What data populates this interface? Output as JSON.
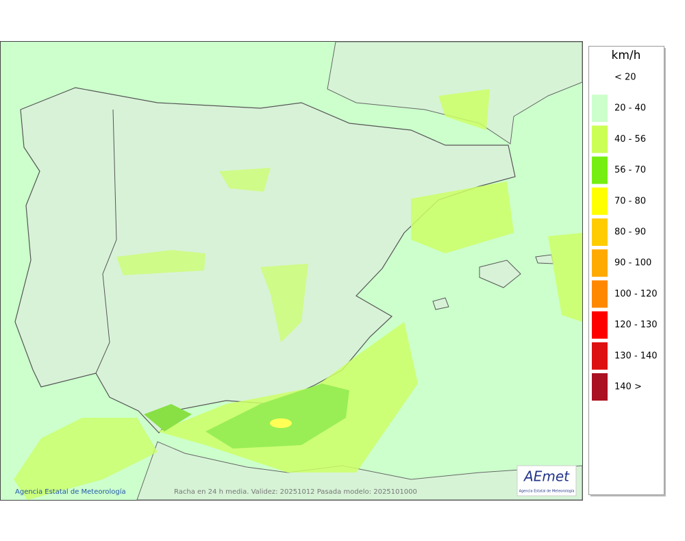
{
  "map": {
    "credit": "Agencia Estatal de Meteorología",
    "caption": "Racha en 24 h media. Validez: 20251012 Pasada modelo: 2025101000"
  },
  "logo": {
    "text": "AEmet",
    "subtitle": "Agencia Estatal de Meteorología"
  },
  "legend": {
    "title": "km/h",
    "items": [
      {
        "label": "< 20",
        "color": "#ffffff"
      },
      {
        "label": "20 - 40",
        "color": "#ccffcc"
      },
      {
        "label": "40 - 56",
        "color": "#ccff55"
      },
      {
        "label": "56 - 70",
        "color": "#77ee11"
      },
      {
        "label": "70 - 80",
        "color": "#ffff00"
      },
      {
        "label": "80 - 90",
        "color": "#ffcc00"
      },
      {
        "label": "90 - 100",
        "color": "#ffaa00"
      },
      {
        "label": "100 - 120",
        "color": "#ff8800"
      },
      {
        "label": "120 - 130",
        "color": "#ff0000"
      },
      {
        "label": "130 - 140",
        "color": "#dd1111"
      },
      {
        "label": "140 >",
        "color": "#aa1122"
      }
    ]
  }
}
